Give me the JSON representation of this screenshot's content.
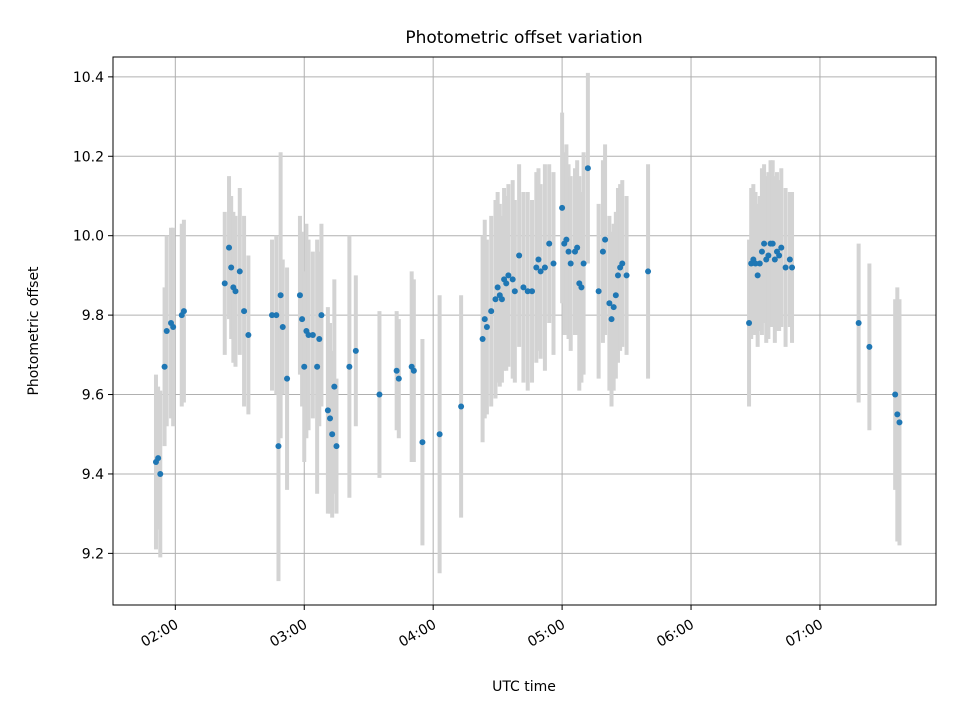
{
  "chart_data": {
    "type": "scatter",
    "title": "Photometric offset variation",
    "xlabel": "UTC time",
    "ylabel": "Photometric offset",
    "xlim": [
      "01:31",
      "07:54"
    ],
    "ylim": [
      9.07,
      10.45
    ],
    "grid": true,
    "x_ticks": [
      "02:00",
      "03:00",
      "04:00",
      "05:00",
      "06:00",
      "07:00"
    ],
    "y_ticks": [
      9.2,
      9.4,
      9.6,
      9.8,
      10.0,
      10.2,
      10.4
    ],
    "colors": {
      "points": "#1f77b4",
      "errorbars": "#d3d3d3",
      "grid": "#b0b0b0"
    },
    "points": [
      {
        "t": "01:51",
        "y": 9.43,
        "err": 0.22
      },
      {
        "t": "01:52",
        "y": 9.44,
        "err": 0.18
      },
      {
        "t": "01:53",
        "y": 9.4,
        "err": 0.21
      },
      {
        "t": "01:55",
        "y": 9.67,
        "err": 0.2
      },
      {
        "t": "01:56",
        "y": 9.76,
        "err": 0.24
      },
      {
        "t": "01:58",
        "y": 9.78,
        "err": 0.24
      },
      {
        "t": "01:59",
        "y": 9.77,
        "err": 0.25
      },
      {
        "t": "02:03",
        "y": 9.8,
        "err": 0.23
      },
      {
        "t": "02:04",
        "y": 9.81,
        "err": 0.23
      },
      {
        "t": "02:23",
        "y": 9.88,
        "err": 0.18
      },
      {
        "t": "02:25",
        "y": 9.97,
        "err": 0.18
      },
      {
        "t": "02:26",
        "y": 9.92,
        "err": 0.18
      },
      {
        "t": "02:27",
        "y": 9.87,
        "err": 0.19
      },
      {
        "t": "02:28",
        "y": 9.86,
        "err": 0.19
      },
      {
        "t": "02:30",
        "y": 9.91,
        "err": 0.21
      },
      {
        "t": "02:32",
        "y": 9.81,
        "err": 0.24
      },
      {
        "t": "02:34",
        "y": 9.75,
        "err": 0.2
      },
      {
        "t": "02:45",
        "y": 9.8,
        "err": 0.19
      },
      {
        "t": "02:47",
        "y": 9.8,
        "err": 0.2
      },
      {
        "t": "02:48",
        "y": 9.47,
        "err": 0.34
      },
      {
        "t": "02:49",
        "y": 9.85,
        "err": 0.36
      },
      {
        "t": "02:50",
        "y": 9.77,
        "err": 0.17
      },
      {
        "t": "02:52",
        "y": 9.64,
        "err": 0.28
      },
      {
        "t": "02:58",
        "y": 9.85,
        "err": 0.2
      },
      {
        "t": "02:59",
        "y": 9.79,
        "err": 0.22
      },
      {
        "t": "03:00",
        "y": 9.67,
        "err": 0.24
      },
      {
        "t": "03:01",
        "y": 9.76,
        "err": 0.27
      },
      {
        "t": "03:02",
        "y": 9.75,
        "err": 0.24
      },
      {
        "t": "03:04",
        "y": 9.75,
        "err": 0.21
      },
      {
        "t": "03:06",
        "y": 9.67,
        "err": 0.32
      },
      {
        "t": "03:07",
        "y": 9.74,
        "err": 0.22
      },
      {
        "t": "03:08",
        "y": 9.8,
        "err": 0.23
      },
      {
        "t": "03:11",
        "y": 9.56,
        "err": 0.26
      },
      {
        "t": "03:12",
        "y": 9.54,
        "err": 0.24
      },
      {
        "t": "03:13",
        "y": 9.5,
        "err": 0.21
      },
      {
        "t": "03:14",
        "y": 9.62,
        "err": 0.27
      },
      {
        "t": "03:15",
        "y": 9.47,
        "err": 0.17
      },
      {
        "t": "03:21",
        "y": 9.67,
        "err": 0.33
      },
      {
        "t": "03:24",
        "y": 9.71,
        "err": 0.19
      },
      {
        "t": "03:35",
        "y": 9.6,
        "err": 0.21
      },
      {
        "t": "03:43",
        "y": 9.66,
        "err": 0.15
      },
      {
        "t": "03:44",
        "y": 9.64,
        "err": 0.15
      },
      {
        "t": "03:50",
        "y": 9.67,
        "err": 0.24
      },
      {
        "t": "03:51",
        "y": 9.66,
        "err": 0.23
      },
      {
        "t": "03:55",
        "y": 9.48,
        "err": 0.26
      },
      {
        "t": "04:03",
        "y": 9.5,
        "err": 0.35
      },
      {
        "t": "04:13",
        "y": 9.57,
        "err": 0.28
      },
      {
        "t": "04:23",
        "y": 9.74,
        "err": 0.26
      },
      {
        "t": "04:24",
        "y": 9.79,
        "err": 0.25
      },
      {
        "t": "04:25",
        "y": 9.77,
        "err": 0.22
      },
      {
        "t": "04:27",
        "y": 9.81,
        "err": 0.24
      },
      {
        "t": "04:29",
        "y": 9.84,
        "err": 0.25
      },
      {
        "t": "04:30",
        "y": 9.87,
        "err": 0.24
      },
      {
        "t": "04:31",
        "y": 9.85,
        "err": 0.23
      },
      {
        "t": "04:32",
        "y": 9.84,
        "err": 0.21
      },
      {
        "t": "04:33",
        "y": 9.89,
        "err": 0.23
      },
      {
        "t": "04:34",
        "y": 9.88,
        "err": 0.22
      },
      {
        "t": "04:35",
        "y": 9.9,
        "err": 0.23
      },
      {
        "t": "04:37",
        "y": 9.89,
        "err": 0.25
      },
      {
        "t": "04:38",
        "y": 9.86,
        "err": 0.23
      },
      {
        "t": "04:40",
        "y": 9.95,
        "err": 0.23
      },
      {
        "t": "04:42",
        "y": 9.87,
        "err": 0.24
      },
      {
        "t": "04:44",
        "y": 9.86,
        "err": 0.25
      },
      {
        "t": "04:46",
        "y": 9.86,
        "err": 0.23
      },
      {
        "t": "04:48",
        "y": 9.92,
        "err": 0.24
      },
      {
        "t": "04:49",
        "y": 9.94,
        "err": 0.23
      },
      {
        "t": "04:50",
        "y": 9.91,
        "err": 0.22
      },
      {
        "t": "04:52",
        "y": 9.92,
        "err": 0.26
      },
      {
        "t": "04:54",
        "y": 9.98,
        "err": 0.2
      },
      {
        "t": "04:56",
        "y": 9.93,
        "err": 0.23
      },
      {
        "t": "05:00",
        "y": 10.07,
        "err": 0.24
      },
      {
        "t": "05:01",
        "y": 9.98,
        "err": 0.23
      },
      {
        "t": "05:02",
        "y": 9.99,
        "err": 0.24
      },
      {
        "t": "05:03",
        "y": 9.96,
        "err": 0.22
      },
      {
        "t": "05:04",
        "y": 9.93,
        "err": 0.22
      },
      {
        "t": "05:06",
        "y": 9.96,
        "err": 0.21
      },
      {
        "t": "05:07",
        "y": 9.97,
        "err": 0.22
      },
      {
        "t": "05:08",
        "y": 9.88,
        "err": 0.27
      },
      {
        "t": "05:09",
        "y": 9.87,
        "err": 0.24
      },
      {
        "t": "05:10",
        "y": 9.93,
        "err": 0.28
      },
      {
        "t": "05:12",
        "y": 10.17,
        "err": 0.24
      },
      {
        "t": "05:17",
        "y": 9.86,
        "err": 0.22
      },
      {
        "t": "05:19",
        "y": 9.96,
        "err": 0.23
      },
      {
        "t": "05:20",
        "y": 9.99,
        "err": 0.24
      },
      {
        "t": "05:22",
        "y": 9.83,
        "err": 0.22
      },
      {
        "t": "05:23",
        "y": 9.79,
        "err": 0.22
      },
      {
        "t": "05:24",
        "y": 9.82,
        "err": 0.21
      },
      {
        "t": "05:25",
        "y": 9.85,
        "err": 0.21
      },
      {
        "t": "05:26",
        "y": 9.9,
        "err": 0.22
      },
      {
        "t": "05:27",
        "y": 9.92,
        "err": 0.21
      },
      {
        "t": "05:28",
        "y": 9.93,
        "err": 0.21
      },
      {
        "t": "05:30",
        "y": 9.9,
        "err": 0.2
      },
      {
        "t": "05:40",
        "y": 9.91,
        "err": 0.27
      },
      {
        "t": "06:27",
        "y": 9.78,
        "err": 0.21
      },
      {
        "t": "06:28",
        "y": 9.93,
        "err": 0.19
      },
      {
        "t": "06:29",
        "y": 9.94,
        "err": 0.19
      },
      {
        "t": "06:30",
        "y": 9.93,
        "err": 0.18
      },
      {
        "t": "06:31",
        "y": 9.9,
        "err": 0.18
      },
      {
        "t": "06:32",
        "y": 9.93,
        "err": 0.17
      },
      {
        "t": "06:33",
        "y": 9.96,
        "err": 0.21
      },
      {
        "t": "06:34",
        "y": 9.98,
        "err": 0.2
      },
      {
        "t": "06:35",
        "y": 9.94,
        "err": 0.21
      },
      {
        "t": "06:36",
        "y": 9.95,
        "err": 0.21
      },
      {
        "t": "06:37",
        "y": 9.98,
        "err": 0.21
      },
      {
        "t": "06:38",
        "y": 9.98,
        "err": 0.21
      },
      {
        "t": "06:39",
        "y": 9.94,
        "err": 0.21
      },
      {
        "t": "06:40",
        "y": 9.96,
        "err": 0.2
      },
      {
        "t": "06:41",
        "y": 9.95,
        "err": 0.19
      },
      {
        "t": "06:42",
        "y": 9.97,
        "err": 0.2
      },
      {
        "t": "06:44",
        "y": 9.92,
        "err": 0.2
      },
      {
        "t": "06:46",
        "y": 9.94,
        "err": 0.17
      },
      {
        "t": "06:47",
        "y": 9.92,
        "err": 0.19
      },
      {
        "t": "07:18",
        "y": 9.78,
        "err": 0.2
      },
      {
        "t": "07:23",
        "y": 9.72,
        "err": 0.21
      },
      {
        "t": "07:35",
        "y": 9.6,
        "err": 0.24
      },
      {
        "t": "07:36",
        "y": 9.55,
        "err": 0.32
      },
      {
        "t": "07:37",
        "y": 9.53,
        "err": 0.31
      }
    ]
  }
}
